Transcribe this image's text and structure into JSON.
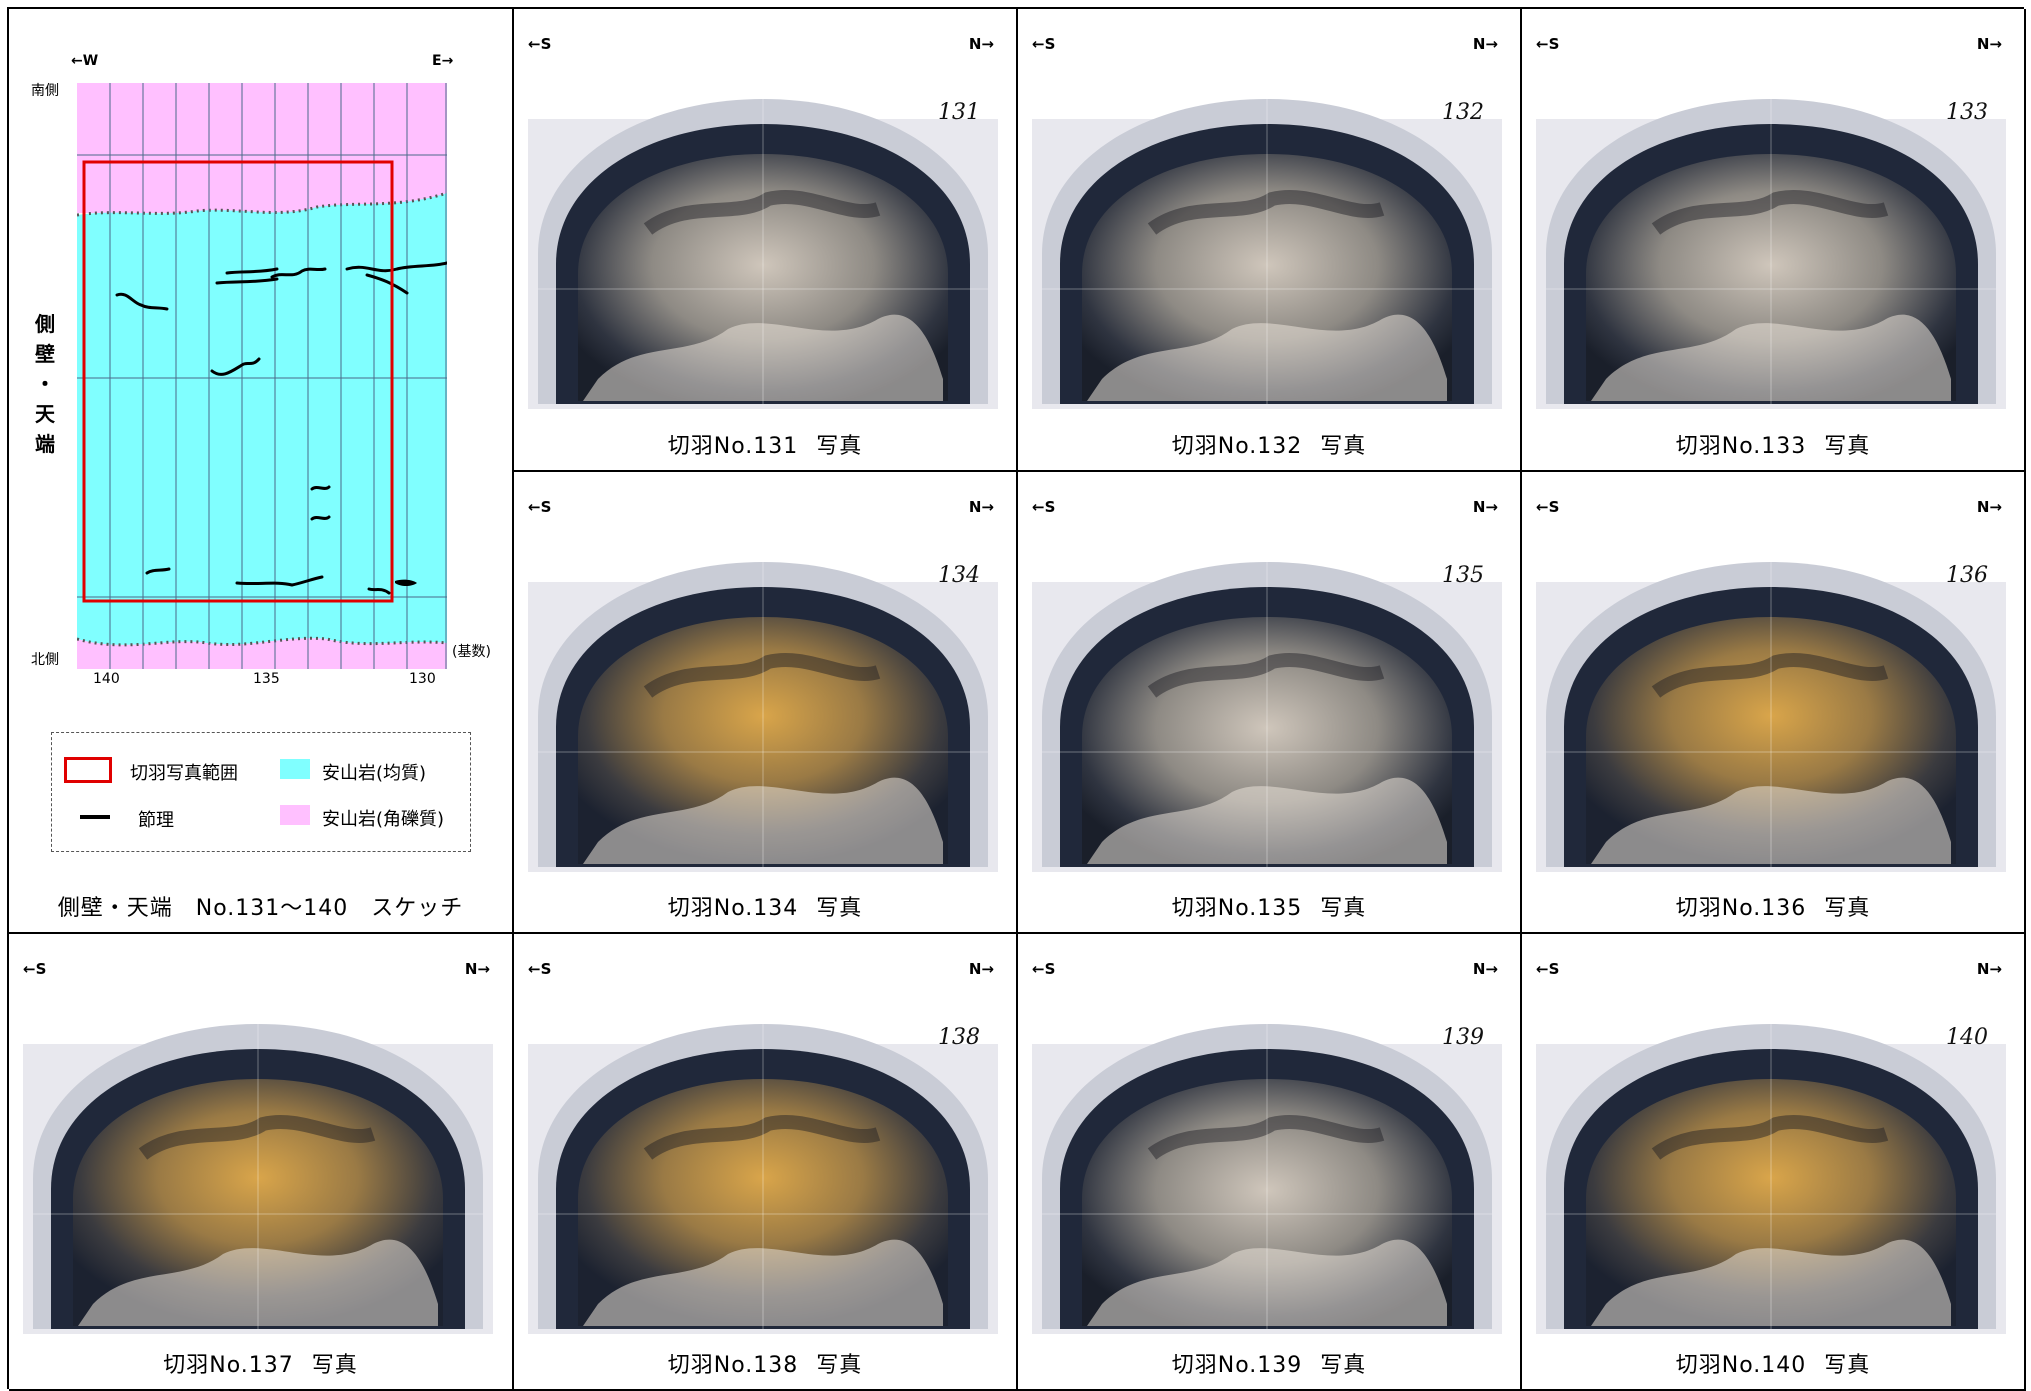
{
  "sketch": {
    "west_label": "←W",
    "east_label": "E→",
    "south_side": "南側",
    "north_side": "北側",
    "wall_label_1": "側壁",
    "wall_label_dot": "・",
    "wall_label_2": "天端",
    "axis_unit": "(基数)",
    "tick_140": "140",
    "tick_135": "135",
    "tick_130": "130",
    "legend": {
      "photo_range": "切羽写真範囲",
      "andesite_homogeneous": "安山岩(均質)",
      "joint": "節理",
      "andesite_brecciated": "安山岩(角礫質)"
    },
    "caption": "側壁・天端　No.131～140　スケッチ",
    "colors": {
      "homogeneous": "#80ffff",
      "brecciated": "#ffc0ff",
      "photo_range": "#e00000"
    }
  },
  "direction": {
    "south": "←S",
    "north": "N→"
  },
  "photos": [
    {
      "id": "131",
      "caption_main": "切羽No.131",
      "caption_suffix": "写真",
      "mark": "131"
    },
    {
      "id": "132",
      "caption_main": "切羽No.132",
      "caption_suffix": "写真",
      "mark": "132"
    },
    {
      "id": "133",
      "caption_main": "切羽No.133",
      "caption_suffix": "写真",
      "mark": "133"
    },
    {
      "id": "134",
      "caption_main": "切羽No.134",
      "caption_suffix": "写真",
      "mark": "134"
    },
    {
      "id": "135",
      "caption_main": "切羽No.135",
      "caption_suffix": "写真",
      "mark": "135"
    },
    {
      "id": "136",
      "caption_main": "切羽No.136",
      "caption_suffix": "写真",
      "mark": "136"
    },
    {
      "id": "137",
      "caption_main": "切羽No.137",
      "caption_suffix": "写真",
      "mark": ""
    },
    {
      "id": "138",
      "caption_main": "切羽No.138",
      "caption_suffix": "写真",
      "mark": "138"
    },
    {
      "id": "139",
      "caption_main": "切羽No.139",
      "caption_suffix": "写真",
      "mark": "139"
    },
    {
      "id": "140",
      "caption_main": "切羽No.140",
      "caption_suffix": "写真",
      "mark": "140"
    }
  ]
}
